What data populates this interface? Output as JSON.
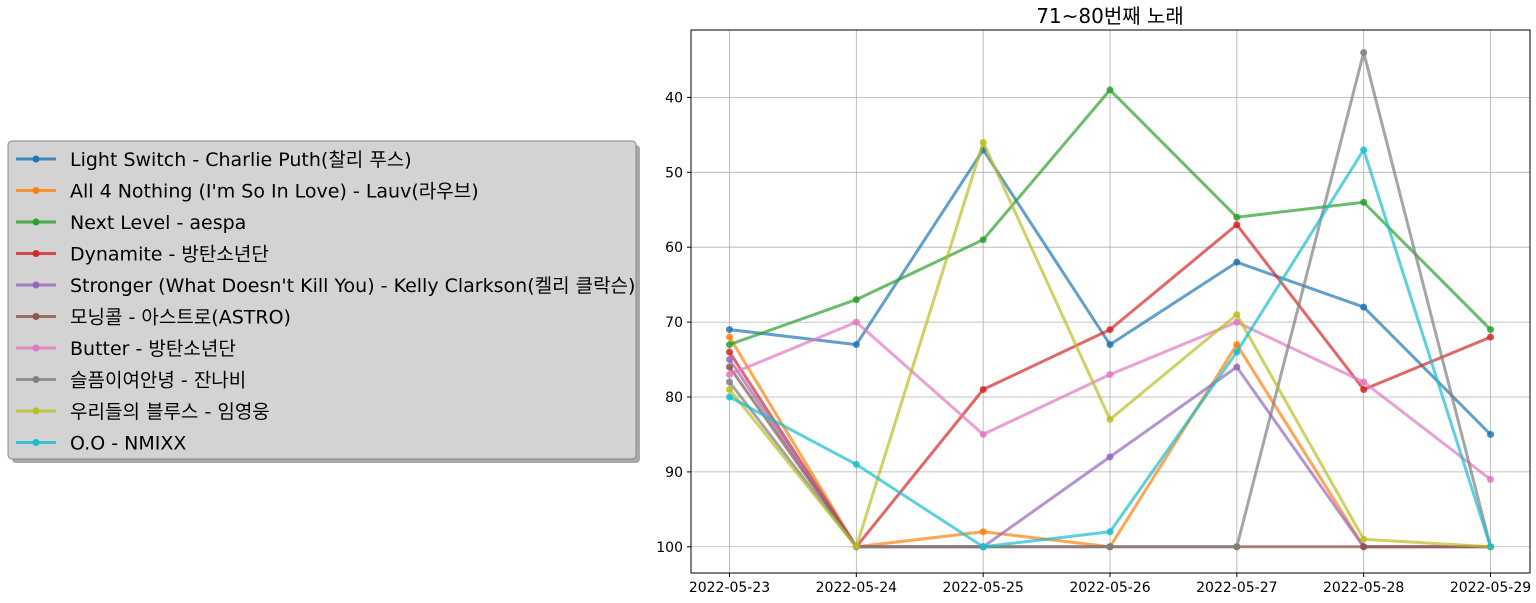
{
  "chart_data": {
    "type": "line",
    "title": "71~80번째 노래",
    "xlabel": "",
    "ylabel": "",
    "x": [
      "2022-05-23",
      "2022-05-24",
      "2022-05-25",
      "2022-05-26",
      "2022-05-27",
      "2022-05-28",
      "2022-05-29"
    ],
    "yticks": [
      40,
      50,
      60,
      70,
      80,
      90,
      100
    ],
    "ylim": [
      103.5,
      31
    ],
    "y_inverted": true,
    "grid": true,
    "legend_position": "left, outside plot",
    "series": [
      {
        "name": "Light Switch - Charlie Puth(찰리 푸스)",
        "color": "#1f77b4",
        "values": [
          71,
          73,
          47,
          73,
          62,
          68,
          85
        ]
      },
      {
        "name": "All 4 Nothing (I'm So In Love) - Lauv(라우브)",
        "color": "#ff7f0e",
        "values": [
          72,
          100,
          98,
          100,
          73,
          100,
          100
        ]
      },
      {
        "name": "Next Level - aespa",
        "color": "#2ca02c",
        "values": [
          73,
          67,
          59,
          39,
          56,
          54,
          71
        ]
      },
      {
        "name": "Dynamite - 방탄소년단",
        "color": "#d62728",
        "values": [
          74,
          100,
          79,
          71,
          57,
          79,
          72
        ]
      },
      {
        "name": "Stronger (What Doesn't Kill You) - Kelly Clarkson(켈리 클락슨)",
        "color": "#9467bd",
        "values": [
          75,
          100,
          100,
          88,
          76,
          100,
          100
        ]
      },
      {
        "name": "모닝콜 - 아스트로(ASTRO)",
        "color": "#8c564b",
        "values": [
          76,
          100,
          100,
          100,
          100,
          100,
          100
        ]
      },
      {
        "name": "Butter - 방탄소년단",
        "color": "#e377c2",
        "values": [
          77,
          70,
          85,
          77,
          70,
          78,
          91
        ]
      },
      {
        "name": "슬픔이여안녕 - 잔나비",
        "color": "#7f7f7f",
        "values": [
          78,
          100,
          100,
          100,
          100,
          34,
          100
        ]
      },
      {
        "name": "우리들의 블루스 - 임영웅",
        "color": "#bcbd22",
        "values": [
          79,
          100,
          46,
          83,
          69,
          99,
          100
        ]
      },
      {
        "name": "O.O - NMIXX",
        "color": "#17becf",
        "values": [
          80,
          89,
          100,
          98,
          74,
          47,
          100
        ]
      }
    ]
  }
}
